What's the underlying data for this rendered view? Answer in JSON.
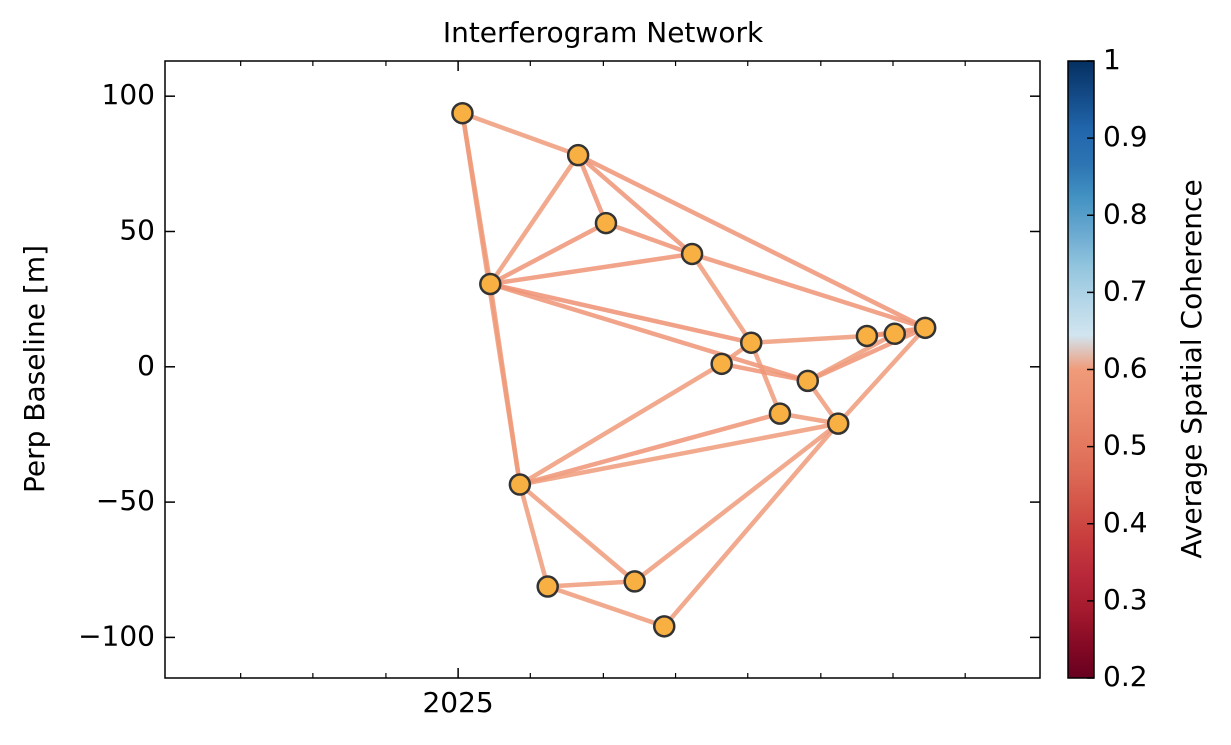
{
  "chart_data": {
    "type": "network",
    "title": "Interferogram Network",
    "ylabel": "Perp Baseline [m]",
    "colorbar_label": "Average Spatial Coherence",
    "x": [
      2025.005,
      2025.138,
      2025.17,
      2025.269,
      2025.037,
      2025.337,
      2025.303,
      2025.47,
      2025.502,
      2025.537,
      2025.402,
      2025.37,
      2025.437,
      2025.071,
      2025.103,
      2025.203,
      2025.237
    ],
    "y": [
      93.7,
      78.2,
      53.1,
      41.7,
      30.6,
      8.9,
      1.1,
      11.4,
      12.2,
      14.4,
      -5.2,
      -17.3,
      -21.0,
      -43.5,
      -81.2,
      -79.3,
      -95.9
    ],
    "node_color": "#f7b041",
    "node_edge_color": "#333333",
    "edges": [
      {
        "from": 0,
        "to": 1,
        "coherence": 0.6
      },
      {
        "from": 0,
        "to": 4,
        "coherence": 0.6
      },
      {
        "from": 0,
        "to": 13,
        "coherence": 0.6
      },
      {
        "from": 1,
        "to": 2,
        "coherence": 0.58
      },
      {
        "from": 1,
        "to": 3,
        "coherence": 0.58
      },
      {
        "from": 1,
        "to": 4,
        "coherence": 0.6
      },
      {
        "from": 1,
        "to": 9,
        "coherence": 0.58
      },
      {
        "from": 2,
        "to": 4,
        "coherence": 0.58
      },
      {
        "from": 2,
        "to": 3,
        "coherence": 0.58
      },
      {
        "from": 3,
        "to": 4,
        "coherence": 0.58
      },
      {
        "from": 3,
        "to": 5,
        "coherence": 0.6
      },
      {
        "from": 3,
        "to": 9,
        "coherence": 0.58
      },
      {
        "from": 4,
        "to": 5,
        "coherence": 0.57
      },
      {
        "from": 4,
        "to": 10,
        "coherence": 0.58
      },
      {
        "from": 4,
        "to": 13,
        "coherence": 0.6
      },
      {
        "from": 5,
        "to": 6,
        "coherence": 0.6
      },
      {
        "from": 5,
        "to": 7,
        "coherence": 0.6
      },
      {
        "from": 5,
        "to": 11,
        "coherence": 0.6
      },
      {
        "from": 6,
        "to": 10,
        "coherence": 0.58
      },
      {
        "from": 6,
        "to": 13,
        "coherence": 0.6
      },
      {
        "from": 7,
        "to": 8,
        "coherence": 0.6
      },
      {
        "from": 7,
        "to": 9,
        "coherence": 0.58
      },
      {
        "from": 8,
        "to": 9,
        "coherence": 0.6
      },
      {
        "from": 10,
        "to": 9,
        "coherence": 0.58
      },
      {
        "from": 10,
        "to": 8,
        "coherence": 0.6
      },
      {
        "from": 10,
        "to": 12,
        "coherence": 0.6
      },
      {
        "from": 9,
        "to": 12,
        "coherence": 0.6
      },
      {
        "from": 11,
        "to": 12,
        "coherence": 0.6
      },
      {
        "from": 11,
        "to": 13,
        "coherence": 0.58
      },
      {
        "from": 12,
        "to": 13,
        "coherence": 0.6
      },
      {
        "from": 13,
        "to": 14,
        "coherence": 0.6
      },
      {
        "from": 13,
        "to": 15,
        "coherence": 0.6
      },
      {
        "from": 14,
        "to": 15,
        "coherence": 0.6
      },
      {
        "from": 14,
        "to": 16,
        "coherence": 0.6
      },
      {
        "from": 15,
        "to": 12,
        "coherence": 0.6
      },
      {
        "from": 16,
        "to": 12,
        "coherence": 0.6
      }
    ],
    "xlim": [
      2024.663,
      2025.669
    ],
    "xticks": [
      2025
    ],
    "xminorticks": [
      2024.75,
      2024.833,
      2024.917,
      2025.083,
      2025.167,
      2025.25,
      2025.333,
      2025.417,
      2025.5,
      2025.583
    ],
    "ylim": [
      -115,
      113
    ],
    "yticks": [
      {
        "value": -100,
        "label": "−100"
      },
      {
        "value": -50,
        "label": "−50"
      },
      0,
      50,
      100
    ],
    "clim": [
      0.2,
      1.0
    ],
    "cticks": [
      0.2,
      0.3,
      0.4,
      0.5,
      0.6,
      0.7,
      0.8,
      0.9,
      1.0
    ],
    "colormap": [
      "#67001f",
      "#860a25",
      "#a51a2e",
      "#b8283a",
      "#c73b3c",
      "#d35348",
      "#dd6a56",
      "#e57c62",
      "#eb8c6e",
      "#f09b7a",
      "#d1e5f0",
      "#b4d6e8",
      "#92c5de",
      "#6aa9d0",
      "#4393c3",
      "#2c74b2",
      "#2166ac",
      "#134a86",
      "#053061"
    ]
  }
}
